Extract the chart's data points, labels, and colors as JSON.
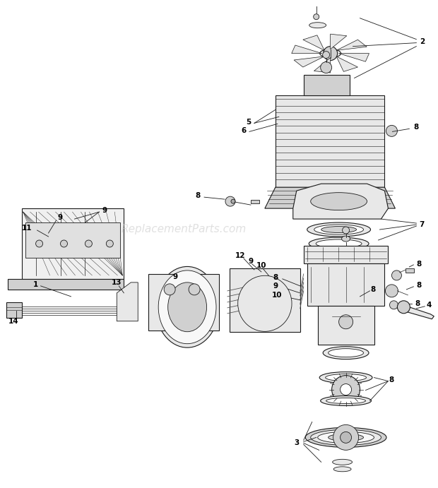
{
  "bg_color": "#ffffff",
  "line_color": "#1a1a1a",
  "part_fill": "#e8e8e8",
  "part_fill2": "#d0d0d0",
  "watermark": "ReplacementParts.com",
  "watermark_color": "#c8c8c8",
  "figsize": [
    6.2,
    6.91
  ],
  "dpi": 100
}
